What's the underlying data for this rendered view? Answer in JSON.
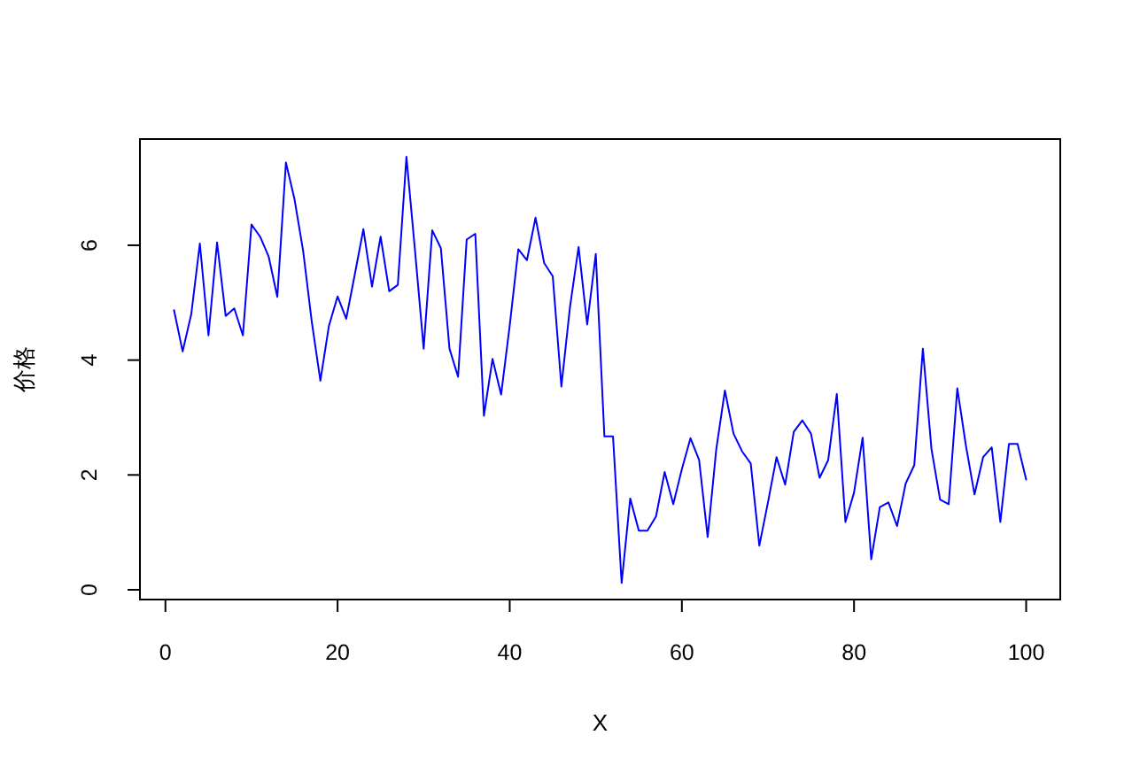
{
  "chart_data": {
    "type": "line",
    "xlabel": "X",
    "ylabel": "价格",
    "x": [
      1,
      2,
      3,
      4,
      5,
      6,
      7,
      8,
      9,
      10,
      11,
      12,
      13,
      14,
      15,
      16,
      17,
      18,
      19,
      20,
      21,
      22,
      23,
      24,
      25,
      26,
      27,
      28,
      29,
      30,
      31,
      32,
      33,
      34,
      35,
      36,
      37,
      38,
      39,
      40,
      41,
      42,
      43,
      44,
      45,
      46,
      47,
      48,
      49,
      50,
      51,
      52,
      53,
      54,
      55,
      56,
      57,
      58,
      59,
      60,
      61,
      62,
      63,
      64,
      65,
      66,
      67,
      68,
      69,
      70,
      71,
      72,
      73,
      74,
      75,
      76,
      77,
      78,
      79,
      80,
      81,
      82,
      83,
      84,
      85,
      86,
      87,
      88,
      89,
      90,
      91,
      92,
      93,
      94,
      95,
      96,
      97,
      98,
      99,
      100
    ],
    "series": [
      {
        "color": "#0000ff",
        "line_style": "solid",
        "values": [
          4.87,
          4.15,
          4.8,
          6.03,
          4.43,
          6.05,
          4.77,
          4.9,
          4.43,
          6.36,
          6.15,
          5.8,
          5.1,
          7.44,
          6.8,
          5.9,
          4.67,
          3.64,
          4.6,
          5.11,
          4.72,
          5.49,
          6.28,
          5.28,
          6.15,
          5.2,
          5.31,
          7.54,
          5.9,
          4.2,
          6.26,
          5.95,
          4.2,
          3.71,
          6.1,
          6.2,
          3.03,
          4.02,
          3.4,
          4.6,
          5.93,
          5.74,
          6.48,
          5.69,
          5.46,
          3.54,
          4.92,
          5.97,
          4.62,
          5.85,
          2.67,
          2.67,
          0.12,
          1.59,
          1.03,
          1.03,
          1.28,
          2.05,
          1.49,
          2.1,
          2.64,
          2.26,
          0.92,
          2.45,
          3.47,
          2.72,
          2.41,
          2.2,
          0.77,
          1.52,
          2.31,
          1.83,
          2.75,
          2.95,
          2.72,
          1.95,
          2.26,
          3.41,
          1.18,
          1.69,
          2.65,
          0.53,
          1.44,
          1.52,
          1.11,
          1.85,
          2.17,
          4.2,
          2.45,
          1.57,
          1.49,
          3.51,
          2.51,
          1.66,
          2.31,
          2.48,
          1.18,
          2.54,
          2.54,
          1.92
        ]
      }
    ],
    "xlim": [
      -2.96,
      103.96
    ],
    "ylim": [
      -0.17,
      7.85
    ],
    "xticks": [
      0,
      20,
      40,
      60,
      80,
      100
    ],
    "yticks": [
      0,
      2,
      4,
      6
    ]
  }
}
